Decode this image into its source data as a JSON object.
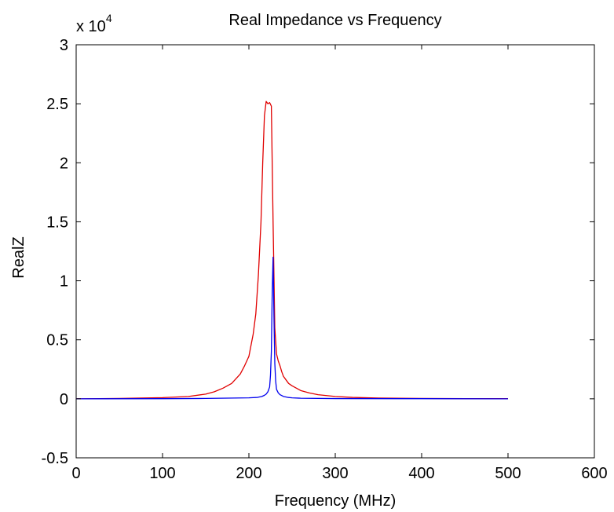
{
  "chart_data": {
    "type": "line",
    "title": "Real Impedance vs Frequency",
    "xlabel": "Frequency (MHz)",
    "ylabel": "RealZ",
    "xlim": [
      0,
      600
    ],
    "ylim": [
      -0.5,
      3
    ],
    "xticks": [
      0,
      100,
      200,
      300,
      400,
      500,
      600
    ],
    "xtick_labels": [
      "0",
      "100",
      "200",
      "300",
      "400",
      "500",
      "600"
    ],
    "yticks": [
      -0.5,
      0,
      0.5,
      1,
      1.5,
      2,
      2.5,
      3
    ],
    "ytick_labels": [
      "-0.5",
      "0",
      "0.5",
      "1",
      "1.5",
      "2",
      "2.5",
      "3"
    ],
    "y_multiplier": {
      "base": "x 10",
      "exponent": "4"
    },
    "grid": false,
    "legend": "none",
    "series": [
      {
        "color": "#e00000",
        "x": [
          0,
          50,
          100,
          130,
          150,
          160,
          170,
          180,
          190,
          195,
          200,
          205,
          208,
          211,
          214,
          216,
          218,
          220,
          222,
          224,
          226,
          228,
          230,
          232,
          234,
          236,
          238,
          240,
          243,
          246,
          250,
          255,
          260,
          270,
          280,
          300,
          320,
          350,
          400,
          450,
          500
        ],
        "y": [
          0,
          0.003,
          0.01,
          0.02,
          0.04,
          0.06,
          0.09,
          0.13,
          0.21,
          0.28,
          0.36,
          0.55,
          0.72,
          1.05,
          1.5,
          2.0,
          2.4,
          2.52,
          2.5,
          2.51,
          2.48,
          1.5,
          0.6,
          0.38,
          0.32,
          0.28,
          0.23,
          0.19,
          0.16,
          0.13,
          0.11,
          0.09,
          0.07,
          0.05,
          0.035,
          0.02,
          0.012,
          0.006,
          0.003,
          0.001,
          0.001
        ]
      },
      {
        "color": "#0000ee",
        "x": [
          0,
          100,
          150,
          200,
          210,
          215,
          218,
          220,
          222,
          224,
          225,
          226,
          227,
          228,
          229,
          230,
          231,
          232,
          234,
          236,
          240,
          245,
          250,
          260,
          300,
          400,
          500
        ],
        "y": [
          0,
          0.001,
          0.003,
          0.008,
          0.012,
          0.02,
          0.03,
          0.04,
          0.06,
          0.1,
          0.2,
          0.4,
          0.9,
          1.2,
          0.7,
          0.3,
          0.15,
          0.08,
          0.05,
          0.035,
          0.02,
          0.012,
          0.008,
          0.005,
          0.002,
          0.001,
          0.0
        ]
      }
    ]
  }
}
